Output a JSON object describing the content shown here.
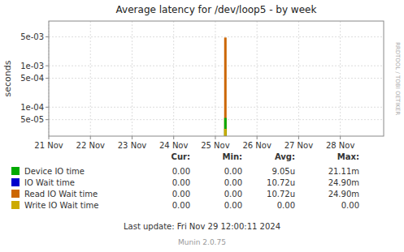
{
  "chart_data": {
    "type": "bar",
    "title": "Average latency for /dev/loop5 - by week",
    "y_label": "seconds",
    "x": [
      1732420000
    ],
    "xlim": [
      1732053600,
      1732748400
    ],
    "xticks": [
      {
        "value": 1732053600,
        "label": "21 Nov"
      },
      {
        "value": 1732140000,
        "label": "22 Nov"
      },
      {
        "value": 1732226400,
        "label": "23 Nov"
      },
      {
        "value": 1732312800,
        "label": "24 Nov"
      },
      {
        "value": 1732399200,
        "label": "25 Nov"
      },
      {
        "value": 1732485600,
        "label": "26 Nov"
      },
      {
        "value": 1732572000,
        "label": "27 Nov"
      },
      {
        "value": 1732658400,
        "label": "28 Nov"
      }
    ],
    "ylim": [
      2e-05,
      0.012
    ],
    "yticks": [
      {
        "value": 5e-05,
        "label": "5e-05"
      },
      {
        "value": 0.0001,
        "label": "1e-04"
      },
      {
        "value": 0.0005,
        "label": "5e-04"
      },
      {
        "value": 0.001,
        "label": "1e-03"
      },
      {
        "value": 0.005,
        "label": "5e-03"
      }
    ],
    "log": "y",
    "grid": true,
    "legend": "bottom",
    "legend_headers": [
      "Cur:",
      "Min:",
      "Avg:",
      "Max:"
    ],
    "series": [
      {
        "name": "Device IO time",
        "color": "#00aa00",
        "values": [
          5.5e-05
        ],
        "cur": "0.00",
        "min": "0.00",
        "avg": "9.05u",
        "max": "21.11m"
      },
      {
        "name": "IO Wait time",
        "color": "#0000cc",
        "values": [
          null
        ],
        "cur": "0.00",
        "min": "0.00",
        "avg": "10.72u",
        "max": "24.90m"
      },
      {
        "name": "Read IO Wait time",
        "color": "#cc6600",
        "values": [
          0.0048
        ],
        "cur": "0.00",
        "min": "0.00",
        "avg": "10.72u",
        "max": "24.90m"
      },
      {
        "name": "Write IO Wait time",
        "color": "#ccaa00",
        "values": [
          3e-05
        ],
        "cur": "0.00",
        "min": "0.00",
        "avg": "0.00",
        "max": "0.00"
      }
    ],
    "footer": "Last update: Fri Nov 29 12:00:11 2024",
    "watermark": "Munin 2.0.75",
    "side_label": "RRDTOOL / TOBI OETIKER"
  }
}
